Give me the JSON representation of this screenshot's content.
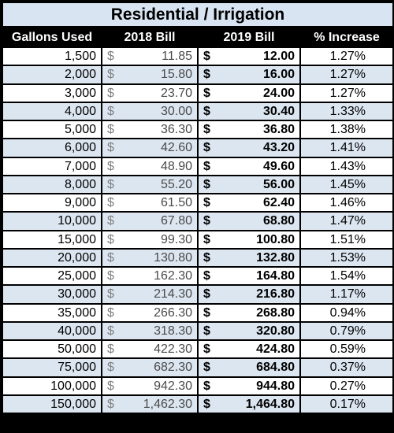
{
  "title": "Residential / Irrigation",
  "headers": [
    "Gallons Used",
    "2018 Bill",
    "2019 Bill",
    "% Increase"
  ],
  "currency_symbol": "$",
  "rows": [
    {
      "gallons": "1,500",
      "bill_2018": "11.85",
      "bill_2019": "12.00",
      "increase": "1.27%"
    },
    {
      "gallons": "2,000",
      "bill_2018": "15.80",
      "bill_2019": "16.00",
      "increase": "1.27%"
    },
    {
      "gallons": "3,000",
      "bill_2018": "23.70",
      "bill_2019": "24.00",
      "increase": "1.27%"
    },
    {
      "gallons": "4,000",
      "bill_2018": "30.00",
      "bill_2019": "30.40",
      "increase": "1.33%"
    },
    {
      "gallons": "5,000",
      "bill_2018": "36.30",
      "bill_2019": "36.80",
      "increase": "1.38%"
    },
    {
      "gallons": "6,000",
      "bill_2018": "42.60",
      "bill_2019": "43.20",
      "increase": "1.41%"
    },
    {
      "gallons": "7,000",
      "bill_2018": "48.90",
      "bill_2019": "49.60",
      "increase": "1.43%"
    },
    {
      "gallons": "8,000",
      "bill_2018": "55.20",
      "bill_2019": "56.00",
      "increase": "1.45%"
    },
    {
      "gallons": "9,000",
      "bill_2018": "61.50",
      "bill_2019": "62.40",
      "increase": "1.46%"
    },
    {
      "gallons": "10,000",
      "bill_2018": "67.80",
      "bill_2019": "68.80",
      "increase": "1.47%"
    },
    {
      "gallons": "15,000",
      "bill_2018": "99.30",
      "bill_2019": "100.80",
      "increase": "1.51%"
    },
    {
      "gallons": "20,000",
      "bill_2018": "130.80",
      "bill_2019": "132.80",
      "increase": "1.53%"
    },
    {
      "gallons": "25,000",
      "bill_2018": "162.30",
      "bill_2019": "164.80",
      "increase": "1.54%"
    },
    {
      "gallons": "30,000",
      "bill_2018": "214.30",
      "bill_2019": "216.80",
      "increase": "1.17%"
    },
    {
      "gallons": "35,000",
      "bill_2018": "266.30",
      "bill_2019": "268.80",
      "increase": "0.94%"
    },
    {
      "gallons": "40,000",
      "bill_2018": "318.30",
      "bill_2019": "320.80",
      "increase": "0.79%"
    },
    {
      "gallons": "50,000",
      "bill_2018": "422.30",
      "bill_2019": "424.80",
      "increase": "0.59%"
    },
    {
      "gallons": "75,000",
      "bill_2018": "682.30",
      "bill_2019": "684.80",
      "increase": "0.37%"
    },
    {
      "gallons": "100,000",
      "bill_2018": "942.30",
      "bill_2019": "944.80",
      "increase": "0.27%"
    },
    {
      "gallons": "150,000",
      "bill_2018": "1,462.30",
      "bill_2019": "1,464.80",
      "increase": "0.17%"
    }
  ]
}
